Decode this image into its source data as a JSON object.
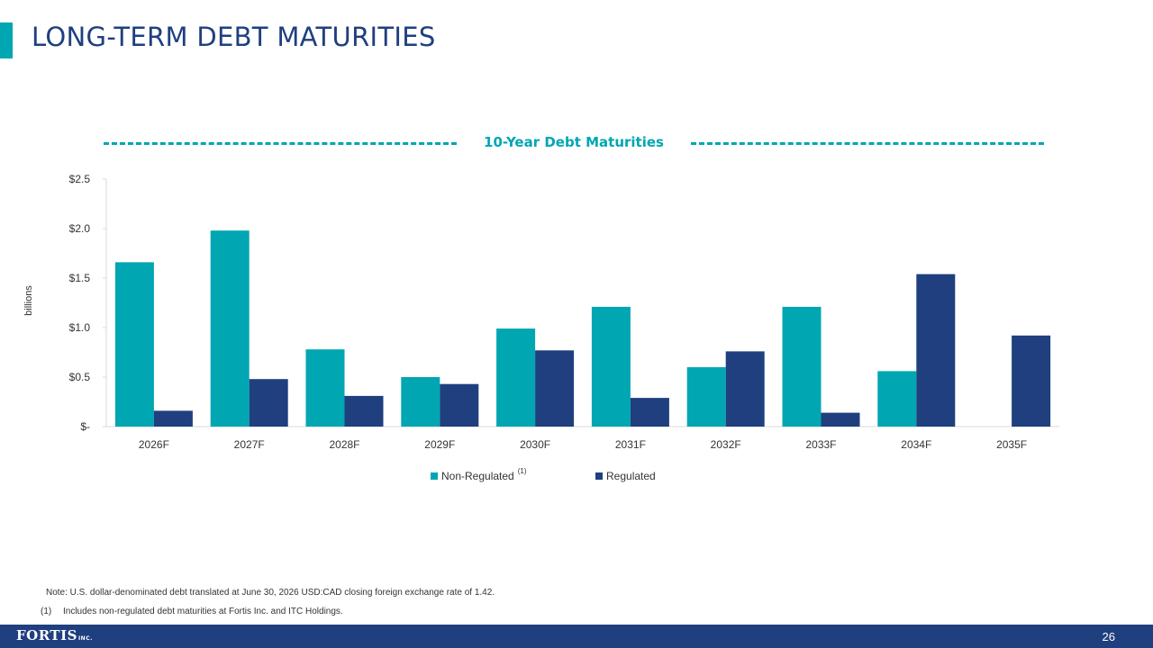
{
  "slide": {
    "title": "LONG-TERM DEBT MATURITIES",
    "page_number": "26",
    "logo_text": "FORTIS",
    "logo_suffix": "INC.",
    "note": "Note: U.S. dollar-denominated debt translated at June 30, 2026 USD:CAD closing foreign exchange rate of 1.42.",
    "footnote_marker": "(1)",
    "footnote_text": "Includes non-regulated debt maturities at Fortis Inc. and ITC Holdings."
  },
  "colors": {
    "accent": "#00a6b2",
    "title": "#1f3f7f",
    "regulated": "#1f3f7f",
    "non_regulated": "#00a6b2",
    "footer": "#1f3f7f",
    "heading": "#00a6b2"
  },
  "chart_data": {
    "type": "bar",
    "title": "10-Year Debt Maturities",
    "ylabel": "billions",
    "xlabel": "",
    "categories": [
      "2026F",
      "2027F",
      "2028F",
      "2029F",
      "2030F",
      "2031F",
      "2032F",
      "2033F",
      "2034F",
      "2035F"
    ],
    "series": [
      {
        "name": "Non-Regulated",
        "legend_sup": "(1)",
        "values": [
          1.66,
          1.98,
          0.78,
          0.5,
          0.99,
          1.21,
          0.6,
          1.21,
          0.56,
          0
        ]
      },
      {
        "name": "Regulated",
        "values": [
          0.16,
          0.48,
          0.31,
          0.43,
          0.77,
          0.29,
          0.76,
          0.14,
          1.54,
          0.92
        ]
      }
    ],
    "ylim": [
      0,
      2.5
    ],
    "yticks": [
      0,
      0.5,
      1.0,
      1.5,
      2.0,
      2.5
    ],
    "ytick_labels": [
      "$-",
      "$0.5",
      "$1.0",
      "$1.5",
      "$2.0",
      "$2.5"
    ],
    "grid": false,
    "legend_position": "bottom"
  }
}
